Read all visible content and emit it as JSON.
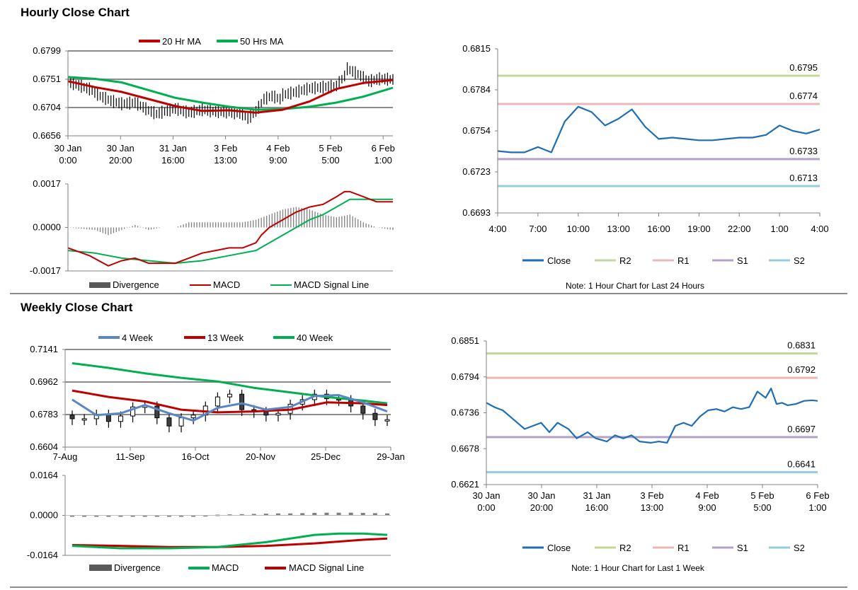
{
  "page": {
    "hourly_title": "Hourly Close Chart",
    "weekly_title": "Weekly Close Chart",
    "hourly_note": "Note: 1 Hour Chart for Last 24 Hours",
    "weekly_note": "Note: 1 Hour Chart for Last 1 Week"
  },
  "colors": {
    "ma_red": "#c00000",
    "ma_green": "#00b050",
    "blue": "#1f6eb4",
    "steel_blue": "#5b86c5",
    "r2": "#c3d69b",
    "r1": "#e6b9b8",
    "s1": "#b3a2c7",
    "s2": "#93cddd",
    "divergence": "#595959"
  },
  "chart_data": [
    {
      "id": "hourly_price",
      "type": "line",
      "legend": [
        "20 Hr MA",
        "50 Hrs MA"
      ],
      "x_tick_labels": [
        [
          "30 Jan",
          "0:00"
        ],
        [
          "30 Jan",
          "20:00"
        ],
        [
          "31 Jan",
          "16:00"
        ],
        [
          "3 Feb",
          "13:00"
        ],
        [
          "4 Feb",
          "9:00"
        ],
        [
          "5 Feb",
          "5:00"
        ],
        [
          "6 Feb",
          "1:00"
        ]
      ],
      "y_tick_labels": [
        "0.6799",
        "0.6751",
        "0.6704",
        "0.6656"
      ],
      "ylim": [
        0.6656,
        0.6799
      ],
      "x_count": 122,
      "series": [
        {
          "name": "20 Hr MA",
          "color": "#c00000",
          "x": [
            0,
            10,
            20,
            30,
            40,
            50,
            60,
            70,
            80,
            90,
            100,
            110,
            121
          ],
          "y": [
            0.6748,
            0.6738,
            0.673,
            0.6718,
            0.6706,
            0.6698,
            0.6699,
            0.6695,
            0.67,
            0.6714,
            0.6735,
            0.6745,
            0.675
          ]
        },
        {
          "name": "50 Hrs MA",
          "color": "#00b050",
          "x": [
            0,
            10,
            20,
            30,
            40,
            50,
            60,
            70,
            80,
            90,
            100,
            110,
            121
          ],
          "y": [
            0.6755,
            0.6752,
            0.6746,
            0.6733,
            0.672,
            0.6712,
            0.6705,
            0.67,
            0.6701,
            0.6705,
            0.6712,
            0.6722,
            0.6737
          ]
        },
        {
          "name": "Price",
          "color": "#000000",
          "x": [
            0,
            8,
            12,
            16,
            20,
            25,
            30,
            33,
            36,
            40,
            45,
            50,
            55,
            60,
            65,
            67,
            70,
            73,
            76,
            79,
            80,
            85,
            90,
            95,
            100,
            103,
            104,
            108,
            112,
            116,
            121
          ],
          "y": [
            0.6747,
            0.6735,
            0.6723,
            0.6715,
            0.671,
            0.6712,
            0.6699,
            0.6693,
            0.6697,
            0.6702,
            0.6695,
            0.67,
            0.6697,
            0.6696,
            0.6693,
            0.6685,
            0.6697,
            0.6718,
            0.6723,
            0.6718,
            0.6725,
            0.673,
            0.6736,
            0.6738,
            0.674,
            0.6757,
            0.6769,
            0.676,
            0.6748,
            0.6752,
            0.6751
          ]
        }
      ]
    },
    {
      "id": "hourly_macd",
      "type": "line",
      "legend": [
        "Divergence",
        "MACD",
        "MACD Signal Line"
      ],
      "y_tick_labels": [
        "0.0017",
        "0.0000",
        "-0.0017"
      ],
      "ylim": [
        -0.0017,
        0.0017
      ],
      "x_count": 122,
      "series": [
        {
          "name": "MACD",
          "color": "#c00000",
          "x": [
            0,
            8,
            15,
            20,
            25,
            30,
            35,
            40,
            45,
            50,
            55,
            60,
            65,
            70,
            72,
            75,
            80,
            85,
            90,
            95,
            100,
            103,
            105,
            110,
            115,
            121
          ],
          "y": [
            -0.0008,
            -0.0011,
            -0.0015,
            -0.0013,
            -0.0012,
            -0.0014,
            -0.0014,
            -0.0014,
            -0.0012,
            -0.001,
            -0.0009,
            -0.0008,
            -0.0008,
            -0.0006,
            -0.0003,
            0.0,
            0.0003,
            0.0006,
            0.0008,
            0.0009,
            0.0012,
            0.0014,
            0.0014,
            0.0012,
            0.001,
            0.001
          ]
        },
        {
          "name": "MACD Signal Line",
          "color": "#00b050",
          "x": [
            0,
            10,
            20,
            30,
            40,
            50,
            60,
            65,
            70,
            75,
            80,
            85,
            90,
            95,
            100,
            105,
            110,
            115,
            121
          ],
          "y": [
            -0.0009,
            -0.001,
            -0.0012,
            -0.0013,
            -0.0014,
            -0.0013,
            -0.0011,
            -0.001,
            -0.0009,
            -0.0006,
            -0.0003,
            0.0,
            0.0003,
            0.0005,
            0.0008,
            0.0011,
            0.0011,
            0.0011,
            0.0011
          ]
        },
        {
          "name": "Divergence",
          "color": "#595959",
          "x": [
            0,
            10,
            15,
            20,
            25,
            30,
            35,
            40,
            45,
            50,
            55,
            60,
            65,
            70,
            75,
            80,
            85,
            90,
            95,
            100,
            105,
            110,
            115,
            121
          ],
          "y": [
            0.0,
            -0.0001,
            -0.0003,
            -0.0001,
            0.0001,
            -0.0001,
            0.0,
            0.0,
            0.0002,
            0.0002,
            0.0002,
            0.0002,
            0.0002,
            0.0003,
            0.0005,
            0.0007,
            0.0008,
            0.0007,
            0.0005,
            0.0004,
            0.0005,
            0.0002,
            0.0,
            -0.0001
          ]
        }
      ]
    },
    {
      "id": "hourly_pivot",
      "type": "line",
      "x_tick_labels": [
        "4:00",
        "7:00",
        "10:00",
        "13:00",
        "16:00",
        "19:00",
        "22:00",
        "1:00",
        "4:00"
      ],
      "y_tick_labels": [
        "0.6815",
        "0.6784",
        "0.6754",
        "0.6723",
        "0.6693"
      ],
      "ylim": [
        0.6693,
        0.6815
      ],
      "levels": [
        {
          "name": "R2",
          "value": 0.6795,
          "label": "0.6795",
          "color": "#c3d69b"
        },
        {
          "name": "R1",
          "value": 0.6774,
          "label": "0.6774",
          "color": "#e6b9b8"
        },
        {
          "name": "S1",
          "value": 0.6733,
          "label": "0.6733",
          "color": "#b3a2c7"
        },
        {
          "name": "S2",
          "value": 0.6713,
          "label": "0.6713",
          "color": "#93cddd"
        }
      ],
      "series": [
        {
          "name": "Close",
          "color": "#1f6eb4",
          "x": [
            0,
            1,
            2,
            3,
            4,
            5,
            6,
            7,
            8,
            9,
            10,
            11,
            12,
            13,
            14,
            15,
            16,
            17,
            18,
            19,
            20,
            21,
            22,
            23,
            24
          ],
          "y": [
            0.6739,
            0.6738,
            0.6738,
            0.6742,
            0.6738,
            0.6761,
            0.6772,
            0.6768,
            0.6758,
            0.6763,
            0.677,
            0.6757,
            0.6748,
            0.6749,
            0.6748,
            0.6747,
            0.6747,
            0.6748,
            0.6749,
            0.6749,
            0.6751,
            0.6758,
            0.6754,
            0.6752,
            0.6755
          ]
        }
      ],
      "legend": [
        "Close",
        "R2",
        "R1",
        "S1",
        "S2"
      ]
    },
    {
      "id": "weekly_price",
      "type": "line",
      "legend": [
        "4 Week",
        "13 Week",
        "40 Week"
      ],
      "x_tick_labels": [
        "7-Aug",
        "11-Sep",
        "16-Oct",
        "20-Nov",
        "25-Dec",
        "29-Jan"
      ],
      "y_tick_labels": [
        "0.7141",
        "0.6962",
        "0.6783",
        "0.6604"
      ],
      "ylim": [
        0.6604,
        0.7141
      ],
      "x_count": 27,
      "series": [
        {
          "name": "4 Week",
          "color": "#5b86c5",
          "x": [
            0,
            2,
            4,
            6,
            8,
            10,
            12,
            14,
            16,
            18,
            20,
            22,
            24,
            26
          ],
          "y": [
            0.6865,
            0.678,
            0.679,
            0.6835,
            0.679,
            0.675,
            0.682,
            0.6845,
            0.681,
            0.6825,
            0.6885,
            0.689,
            0.685,
            0.68
          ]
        },
        {
          "name": "13 Week",
          "color": "#c00000",
          "x": [
            0,
            3,
            6,
            9,
            12,
            15,
            18,
            21,
            24,
            26
          ],
          "y": [
            0.6915,
            0.688,
            0.6855,
            0.681,
            0.6795,
            0.68,
            0.681,
            0.685,
            0.6845,
            0.6835
          ]
        },
        {
          "name": "40 Week",
          "color": "#00b050",
          "x": [
            0,
            3,
            6,
            9,
            12,
            15,
            18,
            21,
            24,
            26
          ],
          "y": [
            0.7065,
            0.704,
            0.701,
            0.6985,
            0.6965,
            0.693,
            0.6905,
            0.688,
            0.686,
            0.6845
          ]
        },
        {
          "name": "Weekly Close",
          "color": "#000000",
          "x": [
            0,
            1,
            2,
            3,
            4,
            5,
            6,
            7,
            8,
            9,
            10,
            11,
            12,
            13,
            14,
            15,
            16,
            17,
            18,
            19,
            20,
            21,
            22,
            23,
            24,
            25,
            26
          ],
          "y": [
            0.676,
            0.676,
            0.6785,
            0.6745,
            0.6775,
            0.6825,
            0.683,
            0.6765,
            0.672,
            0.6765,
            0.678,
            0.683,
            0.688,
            0.6895,
            0.681,
            0.68,
            0.678,
            0.679,
            0.684,
            0.6865,
            0.6895,
            0.687,
            0.6865,
            0.683,
            0.679,
            0.6755,
            0.6755
          ]
        }
      ]
    },
    {
      "id": "weekly_macd",
      "type": "line",
      "legend": [
        "Divergence",
        "MACD",
        "MACD Signal Line"
      ],
      "y_tick_labels": [
        "0.0164",
        "0.0000",
        "-0.0164"
      ],
      "ylim": [
        -0.0164,
        0.0164
      ],
      "x_count": 27,
      "series": [
        {
          "name": "MACD",
          "color": "#00b050",
          "x": [
            0,
            4,
            8,
            12,
            16,
            20,
            22,
            24,
            26
          ],
          "y": [
            -0.0125,
            -0.0135,
            -0.0135,
            -0.013,
            -0.011,
            -0.008,
            -0.0075,
            -0.0075,
            -0.008
          ]
        },
        {
          "name": "MACD Signal Line",
          "color": "#c00000",
          "x": [
            0,
            4,
            8,
            12,
            16,
            20,
            24,
            26
          ],
          "y": [
            -0.0122,
            -0.0125,
            -0.013,
            -0.013,
            -0.0125,
            -0.0115,
            -0.01,
            -0.0095
          ]
        },
        {
          "name": "Divergence",
          "color": "#595959",
          "x": [
            0,
            1,
            2,
            3,
            4,
            5,
            6,
            7,
            8,
            9,
            10,
            11,
            12,
            13,
            14,
            15,
            16,
            17,
            18,
            19,
            20,
            21,
            22,
            23,
            24,
            25,
            26
          ],
          "y": [
            -0.0002,
            -0.0003,
            -0.0004,
            -0.0005,
            -0.0005,
            -0.0004,
            -0.0004,
            -0.0003,
            -0.0002,
            -0.0001,
            0.0,
            0.0001,
            0.0003,
            0.0004,
            0.0005,
            0.0006,
            0.0007,
            0.0008,
            0.0008,
            0.0009,
            0.001,
            0.0011,
            0.0011,
            0.0011,
            0.001,
            0.0009,
            0.0008
          ]
        }
      ]
    },
    {
      "id": "weekly_pivot",
      "type": "line",
      "x_tick_labels": [
        [
          "30 Jan",
          "0:00"
        ],
        [
          "30 Jan",
          "20:00"
        ],
        [
          "31 Jan",
          "16:00"
        ],
        [
          "3 Feb",
          "13:00"
        ],
        [
          "4 Feb",
          "9:00"
        ],
        [
          "5 Feb",
          "5:00"
        ],
        [
          "6 Feb",
          "1:00"
        ]
      ],
      "y_tick_labels": [
        "0.6851",
        "0.6794",
        "0.6736",
        "0.6678",
        "0.6621"
      ],
      "ylim": [
        0.6621,
        0.6851
      ],
      "x_count": 122,
      "levels": [
        {
          "name": "R2",
          "value": 0.6831,
          "label": "0.6831",
          "color": "#c3d69b"
        },
        {
          "name": "R1",
          "value": 0.6792,
          "label": "0.6792",
          "color": "#e6b9b8"
        },
        {
          "name": "S1",
          "value": 0.6697,
          "label": "0.6697",
          "color": "#b3a2c7"
        },
        {
          "name": "S2",
          "value": 0.6641,
          "label": "0.6641",
          "color": "#93cddd"
        }
      ],
      "series": [
        {
          "name": "Close",
          "color": "#1f6eb4",
          "x": [
            0,
            3,
            6,
            10,
            14,
            17,
            20,
            23,
            26,
            30,
            33,
            37,
            40,
            44,
            47,
            50,
            53,
            56,
            60,
            63,
            66,
            69,
            72,
            75,
            78,
            81,
            84,
            87,
            90,
            93,
            96,
            99,
            102,
            104,
            106,
            108,
            110,
            113,
            116,
            119,
            121
          ],
          "y": [
            0.6752,
            0.6745,
            0.674,
            0.6725,
            0.671,
            0.6715,
            0.672,
            0.6705,
            0.672,
            0.671,
            0.6695,
            0.6705,
            0.6695,
            0.669,
            0.67,
            0.6695,
            0.67,
            0.669,
            0.6688,
            0.669,
            0.6688,
            0.6715,
            0.672,
            0.6715,
            0.673,
            0.674,
            0.6742,
            0.6738,
            0.6745,
            0.6742,
            0.6745,
            0.677,
            0.676,
            0.6775,
            0.675,
            0.6752,
            0.6748,
            0.675,
            0.6755,
            0.6756,
            0.6755
          ]
        }
      ],
      "legend": [
        "Close",
        "R2",
        "R1",
        "S1",
        "S2"
      ]
    }
  ]
}
